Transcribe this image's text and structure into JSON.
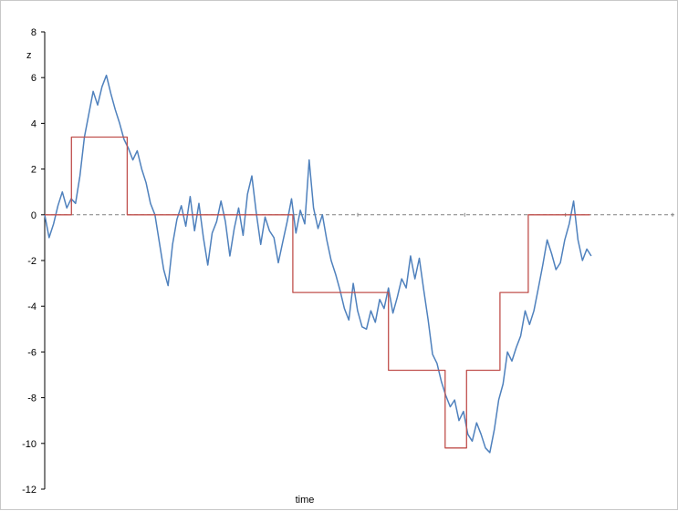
{
  "chart_data": {
    "type": "line",
    "title": "",
    "xlabel": "time",
    "ylabel": "z",
    "ylim": [
      -12,
      8
    ],
    "xlim": [
      0,
      1
    ],
    "yticks": [
      8,
      6,
      4,
      2,
      0,
      -2,
      -4,
      -6,
      -8,
      -10,
      -12
    ],
    "grid": false,
    "zero_line": true,
    "colors": {
      "random_walk": "#4f81bd",
      "step_quantized": "#c0504d",
      "zero_line": "#808080",
      "axis": "#000000"
    },
    "series": [
      {
        "color": "#4f81bd",
        "x": [
          0.0,
          0.007,
          0.014,
          0.021,
          0.028,
          0.035,
          0.042,
          0.049,
          0.056,
          0.063,
          0.07,
          0.077,
          0.084,
          0.091,
          0.098,
          0.105,
          0.112,
          0.119,
          0.126,
          0.133,
          0.14,
          0.147,
          0.154,
          0.161,
          0.168,
          0.175,
          0.182,
          0.189,
          0.196,
          0.203,
          0.21,
          0.217,
          0.224,
          0.231,
          0.238,
          0.245,
          0.252,
          0.259,
          0.266,
          0.273,
          0.28,
          0.287,
          0.294,
          0.301,
          0.308,
          0.315,
          0.322,
          0.329,
          0.336,
          0.343,
          0.35,
          0.357,
          0.364,
          0.371,
          0.378,
          0.385,
          0.392,
          0.399,
          0.406,
          0.413,
          0.42,
          0.427,
          0.434,
          0.441,
          0.448,
          0.455,
          0.462,
          0.469,
          0.476,
          0.483,
          0.49,
          0.497,
          0.504,
          0.511,
          0.518,
          0.525,
          0.532,
          0.539,
          0.546,
          0.553,
          0.56,
          0.567,
          0.574,
          0.581,
          0.588,
          0.595,
          0.602,
          0.609,
          0.616,
          0.623,
          0.63,
          0.637,
          0.644,
          0.651,
          0.658,
          0.665,
          0.672,
          0.679,
          0.686,
          0.693,
          0.7,
          0.707,
          0.714,
          0.721,
          0.728,
          0.735,
          0.742,
          0.749,
          0.756,
          0.763,
          0.77,
          0.777,
          0.784,
          0.791,
          0.798,
          0.805,
          0.812,
          0.819,
          0.826,
          0.833,
          0.84,
          0.847,
          0.854,
          0.861,
          0.868
        ],
        "y": [
          0.0,
          -1.0,
          -0.4,
          0.4,
          1.0,
          0.3,
          0.7,
          0.5,
          1.7,
          3.4,
          4.4,
          5.4,
          4.8,
          5.6,
          6.1,
          5.3,
          4.6,
          4.0,
          3.3,
          2.9,
          2.4,
          2.8,
          2.0,
          1.4,
          0.5,
          0.0,
          -1.2,
          -2.4,
          -3.1,
          -1.3,
          -0.2,
          0.4,
          -0.5,
          0.8,
          -0.7,
          0.5,
          -1.0,
          -2.2,
          -0.8,
          -0.3,
          0.6,
          -0.3,
          -1.8,
          -0.6,
          0.3,
          -0.9,
          0.9,
          1.7,
          0.1,
          -1.3,
          -0.1,
          -0.7,
          -1.0,
          -2.1,
          -1.2,
          -0.3,
          0.7,
          -0.8,
          0.2,
          -0.4,
          2.4,
          0.3,
          -0.6,
          0.0,
          -1.1,
          -2.0,
          -2.6,
          -3.3,
          -4.1,
          -4.6,
          -3.0,
          -4.2,
          -4.9,
          -5.0,
          -4.2,
          -4.7,
          -3.7,
          -4.1,
          -3.2,
          -4.3,
          -3.6,
          -2.8,
          -3.2,
          -1.8,
          -2.8,
          -1.9,
          -3.3,
          -4.6,
          -6.1,
          -6.5,
          -7.3,
          -7.9,
          -8.4,
          -8.1,
          -9.0,
          -8.6,
          -9.6,
          -9.9,
          -9.1,
          -9.6,
          -10.2,
          -10.4,
          -9.4,
          -8.1,
          -7.4,
          -6.0,
          -6.4,
          -5.8,
          -5.3,
          -4.2,
          -4.8,
          -4.2,
          -3.2,
          -2.2,
          -1.1,
          -1.7,
          -2.4,
          -2.1,
          -1.1,
          -0.4,
          0.6,
          -1.1,
          -2.0,
          -1.5,
          -1.8
        ]
      },
      {
        "color": "#c0504d",
        "x": [
          0.0,
          0.0425,
          0.0425,
          0.131,
          0.131,
          0.394,
          0.394,
          0.546,
          0.546,
          0.636,
          0.636,
          0.67,
          0.67,
          0.723,
          0.723,
          0.768,
          0.768,
          0.815,
          0.815,
          0.866
        ],
        "y": [
          0,
          0,
          3.4,
          3.4,
          0,
          0,
          -3.4,
          -3.4,
          -6.8,
          -6.8,
          -10.2,
          -10.2,
          -6.8,
          -6.8,
          -3.4,
          -3.4,
          0,
          0,
          0,
          0
        ]
      }
    ]
  }
}
